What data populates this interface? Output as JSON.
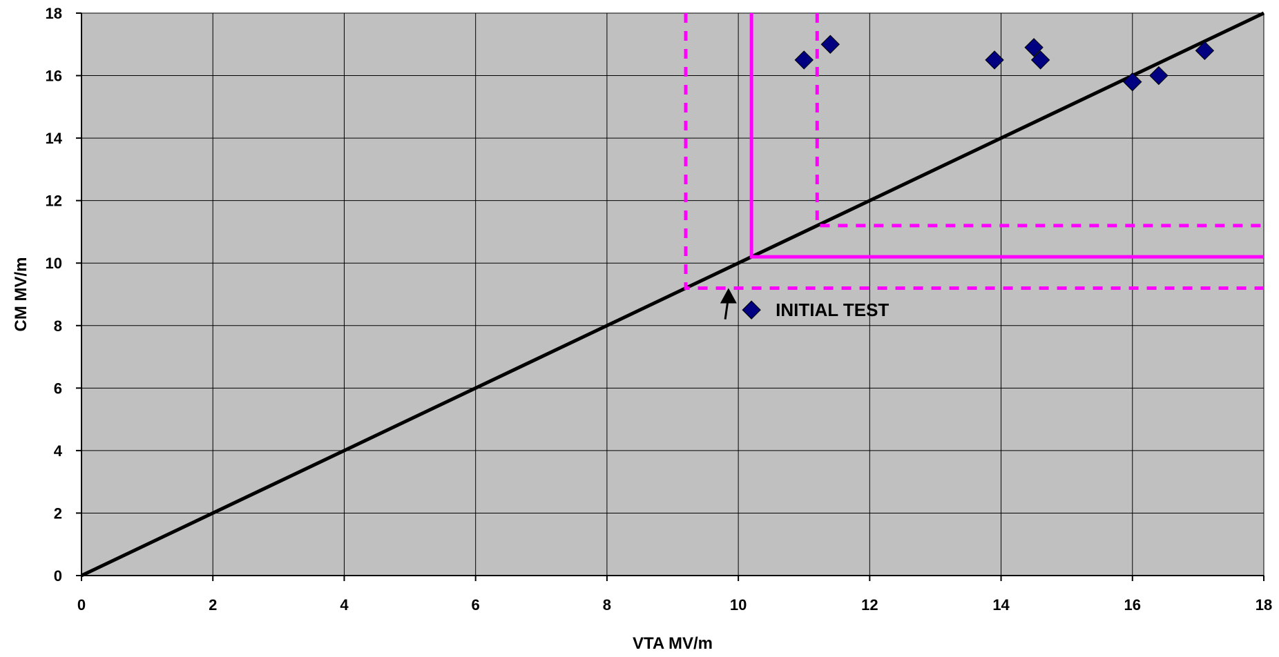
{
  "chart_data": {
    "type": "scatter",
    "xlabel": "VTA MV/m",
    "ylabel": "CM MV/m",
    "xlim": [
      0,
      18
    ],
    "ylim": [
      0,
      18
    ],
    "xticks": [
      0,
      2,
      4,
      6,
      8,
      10,
      12,
      14,
      16,
      18
    ],
    "yticks": [
      0,
      2,
      4,
      6,
      8,
      10,
      12,
      14,
      16,
      18
    ],
    "grid": true,
    "plot_background": "#C0C0C0",
    "series": [
      {
        "marker": "diamond",
        "color": "#000080",
        "points": [
          {
            "x": 11.0,
            "y": 16.5
          },
          {
            "x": 11.4,
            "y": 17.0
          },
          {
            "x": 13.9,
            "y": 16.5
          },
          {
            "x": 14.5,
            "y": 16.9
          },
          {
            "x": 14.6,
            "y": 16.5
          },
          {
            "x": 16.0,
            "y": 15.8
          },
          {
            "x": 16.4,
            "y": 16.0
          },
          {
            "x": 17.1,
            "y": 16.8
          }
        ]
      }
    ],
    "reference_lines": [
      {
        "style": "solid",
        "color": "#000000",
        "points": [
          [
            0,
            0
          ],
          [
            18,
            18
          ]
        ]
      },
      {
        "style": "solid",
        "color": "#FF00FF",
        "points": [
          [
            10.2,
            18
          ],
          [
            10.2,
            10.2
          ],
          [
            18,
            10.2
          ]
        ]
      },
      {
        "style": "dashed",
        "color": "#FF00FF",
        "points": [
          [
            9.2,
            18
          ],
          [
            9.2,
            9.2
          ],
          [
            18,
            9.2
          ]
        ]
      },
      {
        "style": "dashed",
        "color": "#FF00FF",
        "points": [
          [
            11.2,
            18
          ],
          [
            11.2,
            11.2
          ],
          [
            18,
            11.2
          ]
        ]
      }
    ],
    "annotations": [
      {
        "text": "INITIAL TEST",
        "marker": "diamond",
        "x": 10.2,
        "y": 8.5,
        "arrow_from": [
          9.8,
          8.2
        ],
        "arrow_to": [
          9.85,
          9.2
        ]
      }
    ]
  }
}
